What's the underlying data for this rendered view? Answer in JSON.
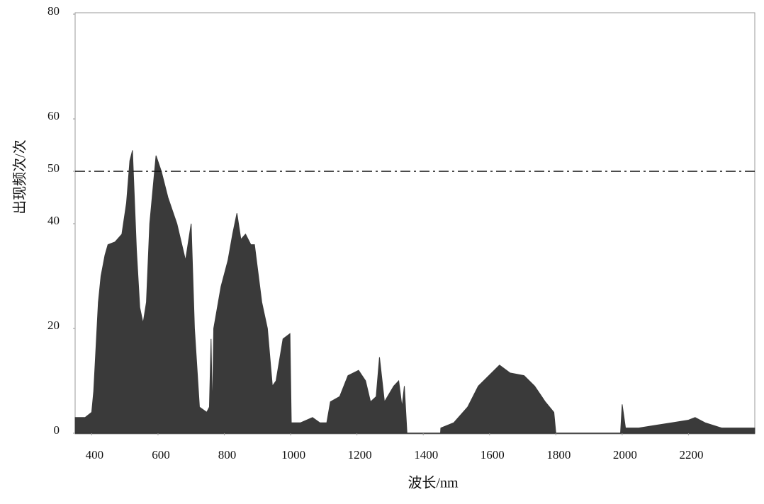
{
  "chart_data": {
    "type": "area",
    "xlabel": "波长/nm",
    "ylabel": "出现频次/次",
    "x": [
      350,
      380,
      400,
      406,
      420,
      428,
      440,
      449,
      470,
      491,
      505,
      515,
      523,
      535,
      545,
      555,
      565,
      575,
      594,
      610,
      630,
      657,
      683,
      700,
      710,
      725,
      747,
      755,
      760,
      764,
      768,
      790,
      811,
      825,
      838,
      850,
      864,
      880,
      891,
      913,
      930,
      945,
      956,
      977,
      998,
      1002,
      1030,
      1066,
      1088,
      1109,
      1120,
      1148,
      1173,
      1205,
      1226,
      1241,
      1258,
      1268,
      1283,
      1311,
      1326,
      1336,
      1343,
      1351,
      1400,
      1452,
      1453,
      1492,
      1534,
      1566,
      1598,
      1630,
      1662,
      1704,
      1736,
      1768,
      1794,
      1800,
      1900,
      1995,
      2000,
      2010,
      2050,
      2100,
      2150,
      2200,
      2220,
      2250,
      2300,
      2350,
      2400
    ],
    "values": [
      3,
      3,
      4,
      8,
      25,
      30,
      34,
      36,
      36.5,
      38,
      44,
      52,
      54,
      35,
      24,
      21,
      25,
      40,
      53,
      50,
      45,
      40,
      33,
      40,
      20,
      5,
      4,
      5,
      18,
      4,
      20,
      28,
      33,
      38,
      42,
      37,
      38,
      36,
      36,
      25,
      20,
      9,
      10,
      18,
      19,
      2,
      2,
      3,
      2,
      2,
      6,
      7,
      11,
      12,
      10,
      6,
      7,
      14.5,
      6,
      9,
      10,
      5,
      9,
      0,
      0,
      0,
      1,
      2,
      5,
      9,
      11,
      13,
      11.5,
      11,
      9,
      6,
      4,
      0,
      0,
      0,
      5.5,
      1,
      1,
      1.5,
      2,
      2.5,
      3,
      2,
      1,
      1,
      1
    ],
    "color": "#3a3a3a",
    "threshold": 50,
    "xlim": [
      350,
      2400
    ],
    "ylim": [
      0,
      80
    ],
    "xticks": [
      400,
      600,
      800,
      1000,
      1200,
      1400,
      1600,
      1800,
      2000,
      2200
    ],
    "yticks": [
      0,
      20,
      40,
      50,
      60,
      80
    ]
  }
}
